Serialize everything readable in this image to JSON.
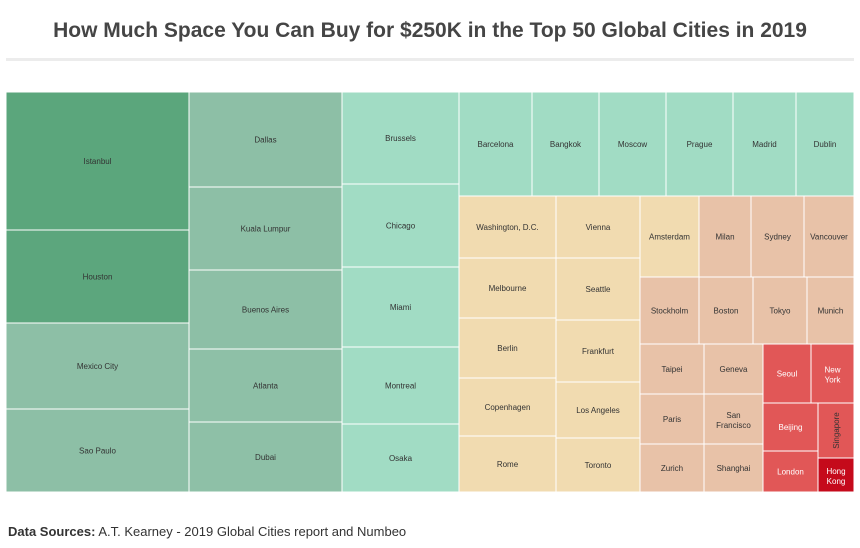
{
  "chart_data": {
    "type": "treemap",
    "title": "How Much Space You Can Buy for $250K in the Top 50 Global Cities in 2019",
    "color_scale": [
      "#5aa57b",
      "#9fdcc4",
      "#f1dcb0",
      "#e5bca4",
      "#e05555",
      "#c20a1a"
    ],
    "cities": [
      {
        "name": "Istanbul",
        "color": "#5ba67c"
      },
      {
        "name": "Houston",
        "color": "#5ca67d"
      },
      {
        "name": "Mexico City",
        "color": "#8dbfa6"
      },
      {
        "name": "Sao Paulo",
        "color": "#8dbfa6"
      },
      {
        "name": "Dallas",
        "color": "#8dbfa6"
      },
      {
        "name": "Kuala Lumpur",
        "color": "#8dbfa6"
      },
      {
        "name": "Buenos Aires",
        "color": "#8dbfa6"
      },
      {
        "name": "Atlanta",
        "color": "#8ec0a7"
      },
      {
        "name": "Dubai",
        "color": "#8ec0a7"
      },
      {
        "name": "Brussels",
        "color": "#a1dcc4"
      },
      {
        "name": "Chicago",
        "color": "#a1dcc4"
      },
      {
        "name": "Miami",
        "color": "#a1dcc4"
      },
      {
        "name": "Montreal",
        "color": "#a1dcc4"
      },
      {
        "name": "Osaka",
        "color": "#a1dcc4"
      },
      {
        "name": "Barcelona",
        "color": "#a1dcc4"
      },
      {
        "name": "Bangkok",
        "color": "#a1dcc4"
      },
      {
        "name": "Moscow",
        "color": "#a1dcc4"
      },
      {
        "name": "Prague",
        "color": "#a1dcc4"
      },
      {
        "name": "Madrid",
        "color": "#a1dcc4"
      },
      {
        "name": "Dublin",
        "color": "#a1dcc4"
      },
      {
        "name": "Washington, D.C.",
        "color": "#f1dbb0"
      },
      {
        "name": "Vienna",
        "color": "#f1dbb0"
      },
      {
        "name": "Melbourne",
        "color": "#f1dbb0"
      },
      {
        "name": "Seattle",
        "color": "#f1dbb0"
      },
      {
        "name": "Berlin",
        "color": "#f1dbb0"
      },
      {
        "name": "Frankfurt",
        "color": "#f1dbb0"
      },
      {
        "name": "Copenhagen",
        "color": "#f1dbb0"
      },
      {
        "name": "Los Angeles",
        "color": "#f1dbb0"
      },
      {
        "name": "Rome",
        "color": "#f1dbb0"
      },
      {
        "name": "Toronto",
        "color": "#f1dbb0"
      },
      {
        "name": "Amsterdam",
        "color": "#f1dbb0"
      },
      {
        "name": "Milan",
        "color": "#e8c2a8"
      },
      {
        "name": "Sydney",
        "color": "#e8c2a8"
      },
      {
        "name": "Vancouver",
        "color": "#e8c2a8"
      },
      {
        "name": "Stockholm",
        "color": "#e8c2a8"
      },
      {
        "name": "Boston",
        "color": "#e8c2a8"
      },
      {
        "name": "Tokyo",
        "color": "#e8c2a8"
      },
      {
        "name": "Munich",
        "color": "#e8c2a8"
      },
      {
        "name": "Taipei",
        "color": "#e8c2a8"
      },
      {
        "name": "Geneva",
        "color": "#e8c2a8"
      },
      {
        "name": "Paris",
        "color": "#e8c2a8"
      },
      {
        "name": "San Francisco",
        "color": "#e8c2a8"
      },
      {
        "name": "Zurich",
        "color": "#e8c2a8"
      },
      {
        "name": "Shanghai",
        "color": "#e8c2a8"
      },
      {
        "name": "Seoul",
        "color": "#e15757"
      },
      {
        "name": "New York",
        "color": "#e15757"
      },
      {
        "name": "Beijing",
        "color": "#e15757"
      },
      {
        "name": "Singapore",
        "color": "#e15757"
      },
      {
        "name": "London",
        "color": "#e15757"
      },
      {
        "name": "Hong Kong",
        "color": "#c50a1b"
      }
    ]
  },
  "footer": {
    "label": "Data Sources:",
    "text": "A.T. Kearney - 2019 Global Cities report and Numbeo"
  }
}
